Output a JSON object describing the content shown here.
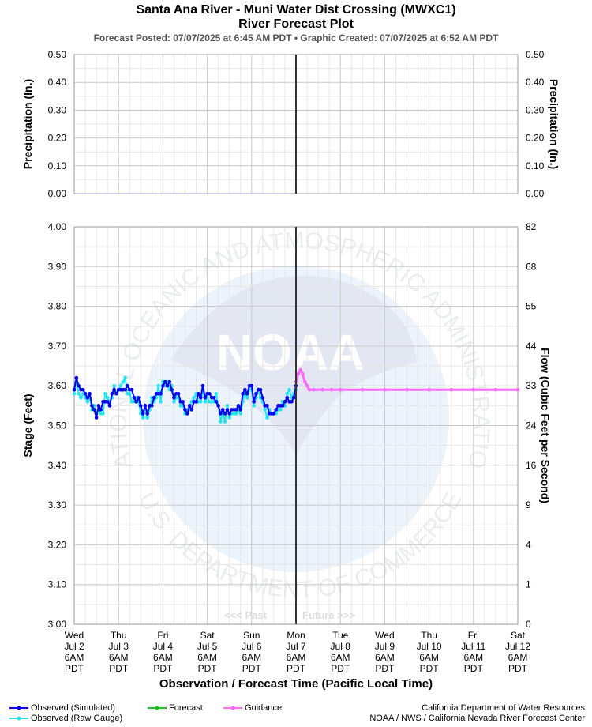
{
  "title_line1": "Santa Ana River - Muni Water Dist Crossing (MWXC1)",
  "title_line2": "River Forecast Plot",
  "subtitle": "Forecast Posted: 07/07/2025 at 6:45 AM PDT  •  Graphic Created: 07/07/2025 at 6:52 AM PDT",
  "watermark": {
    "center_text": "NOAA",
    "ring_top": "NATIONAL OCEANIC AND ATMOSPHERIC ADMINISTRATION",
    "ring_bottom": "U.S. DEPARTMENT OF COMMERCE"
  },
  "past_future": {
    "past": "<<< Past",
    "future": "Future >>>"
  },
  "legend": {
    "observed_simulated": "Observed (Simulated)",
    "observed_raw": "Observed (Raw Gauge)",
    "forecast": "Forecast",
    "guidance": "Guidance"
  },
  "credits": {
    "line1": "California Department of Water Resources",
    "line2": "NOAA / NWS / California Nevada River Forecast Center"
  },
  "colors": {
    "observed_simulated": "#0000ee",
    "observed_raw": "#22e5ee",
    "forecast": "#22bb22",
    "guidance": "#ff66ff",
    "now_line": "#333333",
    "grid": "#cccccc"
  },
  "chart_data": [
    {
      "type": "line",
      "panel": "precipitation",
      "ylabel_left": "Precipitation (In.)",
      "ylabel_right": "Precipitation (In.)",
      "ylim": [
        0,
        0.5
      ],
      "yticks": [
        "0.50",
        "0.40",
        "0.30",
        "0.20",
        "0.10",
        "0.00"
      ],
      "grid": true,
      "series": [
        {
          "values": [
            [
              0,
              0
            ],
            [
              5,
              0
            ]
          ]
        }
      ]
    },
    {
      "type": "line",
      "panel": "stage",
      "xlabel": "Observation / Forecast Time (Pacific Local Time)",
      "ylabel_left": "Stage (Feet)",
      "ylabel_right": "Flow (Cubic Feet per Second)",
      "ylim": [
        3.0,
        4.0
      ],
      "yticks_left": [
        "4.00",
        "3.90",
        "3.80",
        "3.70",
        "3.60",
        "3.50",
        "3.40",
        "3.30",
        "3.20",
        "3.10",
        "3.00"
      ],
      "yticks_right": [
        "82",
        "68",
        "55",
        "44",
        "33",
        "24",
        "16",
        "9",
        "4",
        "1",
        "0"
      ],
      "grid": true,
      "legend_position": "bottom-left",
      "x_ticks": [
        [
          "Wed",
          "Jul 2",
          "6AM",
          "PDT"
        ],
        [
          "Thu",
          "Jul 3",
          "6AM",
          "PDT"
        ],
        [
          "Fri",
          "Jul 4",
          "6AM",
          "PDT"
        ],
        [
          "Sat",
          "Jul 5",
          "6AM",
          "PDT"
        ],
        [
          "Sun",
          "Jul 6",
          "6AM",
          "PDT"
        ],
        [
          "Mon",
          "Jul 7",
          "6AM",
          "PDT"
        ],
        [
          "Tue",
          "Jul 8",
          "6AM",
          "PDT"
        ],
        [
          "Wed",
          "Jul 9",
          "6AM",
          "PDT"
        ],
        [
          "Thu",
          "Jul 10",
          "6AM",
          "PDT"
        ],
        [
          "Fri",
          "Jul 11",
          "6AM",
          "PDT"
        ],
        [
          "Sat",
          "Jul 12",
          "6AM",
          "PDT"
        ]
      ],
      "now_x": 5,
      "series": [
        {
          "name": "Observed (Simulated)",
          "key": "observed_simulated",
          "values": [
            [
              0,
              3.59
            ],
            [
              0.05,
              3.62
            ],
            [
              0.1,
              3.6
            ],
            [
              0.15,
              3.59
            ],
            [
              0.2,
              3.59
            ],
            [
              0.25,
              3.58
            ],
            [
              0.3,
              3.57
            ],
            [
              0.35,
              3.58
            ],
            [
              0.4,
              3.55
            ],
            [
              0.45,
              3.54
            ],
            [
              0.5,
              3.52
            ],
            [
              0.55,
              3.55
            ],
            [
              0.6,
              3.54
            ],
            [
              0.65,
              3.56
            ],
            [
              0.7,
              3.56
            ],
            [
              0.75,
              3.56
            ],
            [
              0.8,
              3.55
            ],
            [
              0.85,
              3.58
            ],
            [
              0.9,
              3.59
            ],
            [
              0.95,
              3.58
            ],
            [
              1.0,
              3.59
            ],
            [
              1.05,
              3.59
            ],
            [
              1.1,
              3.59
            ],
            [
              1.15,
              3.59
            ],
            [
              1.2,
              3.6
            ],
            [
              1.25,
              3.59
            ],
            [
              1.3,
              3.59
            ],
            [
              1.35,
              3.57
            ],
            [
              1.4,
              3.56
            ],
            [
              1.45,
              3.57
            ],
            [
              1.5,
              3.55
            ],
            [
              1.55,
              3.53
            ],
            [
              1.6,
              3.55
            ],
            [
              1.65,
              3.53
            ],
            [
              1.7,
              3.55
            ],
            [
              1.75,
              3.55
            ],
            [
              1.8,
              3.57
            ],
            [
              1.85,
              3.58
            ],
            [
              1.9,
              3.58
            ],
            [
              1.95,
              3.58
            ],
            [
              2.0,
              3.6
            ],
            [
              2.05,
              3.61
            ],
            [
              2.1,
              3.6
            ],
            [
              2.15,
              3.61
            ],
            [
              2.2,
              3.59
            ],
            [
              2.25,
              3.57
            ],
            [
              2.3,
              3.58
            ],
            [
              2.35,
              3.58
            ],
            [
              2.4,
              3.56
            ],
            [
              2.45,
              3.56
            ],
            [
              2.5,
              3.54
            ],
            [
              2.55,
              3.53
            ],
            [
              2.6,
              3.55
            ],
            [
              2.65,
              3.54
            ],
            [
              2.7,
              3.56
            ],
            [
              2.75,
              3.56
            ],
            [
              2.8,
              3.58
            ],
            [
              2.85,
              3.57
            ],
            [
              2.9,
              3.6
            ],
            [
              2.95,
              3.57
            ],
            [
              3.0,
              3.58
            ],
            [
              3.05,
              3.58
            ],
            [
              3.1,
              3.57
            ],
            [
              3.15,
              3.57
            ],
            [
              3.2,
              3.56
            ],
            [
              3.25,
              3.55
            ],
            [
              3.3,
              3.53
            ],
            [
              3.35,
              3.54
            ],
            [
              3.4,
              3.53
            ],
            [
              3.45,
              3.54
            ],
            [
              3.5,
              3.53
            ],
            [
              3.55,
              3.54
            ],
            [
              3.6,
              3.54
            ],
            [
              3.65,
              3.54
            ],
            [
              3.7,
              3.55
            ],
            [
              3.75,
              3.54
            ],
            [
              3.8,
              3.58
            ],
            [
              3.85,
              3.59
            ],
            [
              3.9,
              3.58
            ],
            [
              3.95,
              3.6
            ],
            [
              4.0,
              3.6
            ],
            [
              4.05,
              3.56
            ],
            [
              4.1,
              3.58
            ],
            [
              4.15,
              3.59
            ],
            [
              4.2,
              3.59
            ],
            [
              4.25,
              3.57
            ],
            [
              4.3,
              3.55
            ],
            [
              4.35,
              3.55
            ],
            [
              4.4,
              3.53
            ],
            [
              4.45,
              3.53
            ],
            [
              4.5,
              3.53
            ],
            [
              4.55,
              3.54
            ],
            [
              4.6,
              3.55
            ],
            [
              4.65,
              3.55
            ],
            [
              4.7,
              3.55
            ],
            [
              4.75,
              3.56
            ],
            [
              4.8,
              3.57
            ],
            [
              4.85,
              3.56
            ],
            [
              4.9,
              3.56
            ],
            [
              4.95,
              3.57
            ],
            [
              5.0,
              3.6
            ]
          ]
        },
        {
          "name": "Observed (Raw Gauge)",
          "key": "observed_raw",
          "values": [
            [
              0,
              3.58
            ],
            [
              0.05,
              3.61
            ],
            [
              0.1,
              3.58
            ],
            [
              0.15,
              3.57
            ],
            [
              0.2,
              3.58
            ],
            [
              0.25,
              3.57
            ],
            [
              0.3,
              3.56
            ],
            [
              0.35,
              3.57
            ],
            [
              0.4,
              3.54
            ],
            [
              0.45,
              3.55
            ],
            [
              0.5,
              3.53
            ],
            [
              0.55,
              3.54
            ],
            [
              0.6,
              3.53
            ],
            [
              0.65,
              3.53
            ],
            [
              0.7,
              3.58
            ],
            [
              0.75,
              3.57
            ],
            [
              0.8,
              3.56
            ],
            [
              0.85,
              3.57
            ],
            [
              0.9,
              3.6
            ],
            [
              0.95,
              3.58
            ],
            [
              1.0,
              3.59
            ],
            [
              1.05,
              3.6
            ],
            [
              1.1,
              3.61
            ],
            [
              1.15,
              3.62
            ],
            [
              1.2,
              3.58
            ],
            [
              1.25,
              3.58
            ],
            [
              1.3,
              3.56
            ],
            [
              1.35,
              3.56
            ],
            [
              1.4,
              3.57
            ],
            [
              1.45,
              3.56
            ],
            [
              1.5,
              3.53
            ],
            [
              1.55,
              3.52
            ],
            [
              1.6,
              3.54
            ],
            [
              1.65,
              3.52
            ],
            [
              1.7,
              3.54
            ],
            [
              1.75,
              3.57
            ],
            [
              1.8,
              3.56
            ],
            [
              1.85,
              3.57
            ],
            [
              1.9,
              3.6
            ],
            [
              1.95,
              3.56
            ],
            [
              2.0,
              3.61
            ],
            [
              2.05,
              3.6
            ],
            [
              2.1,
              3.61
            ],
            [
              2.15,
              3.59
            ],
            [
              2.2,
              3.6
            ],
            [
              2.25,
              3.56
            ],
            [
              2.3,
              3.57
            ],
            [
              2.35,
              3.57
            ],
            [
              2.4,
              3.55
            ],
            [
              2.45,
              3.55
            ],
            [
              2.5,
              3.53
            ],
            [
              2.55,
              3.54
            ],
            [
              2.6,
              3.54
            ],
            [
              2.65,
              3.56
            ],
            [
              2.7,
              3.57
            ],
            [
              2.75,
              3.58
            ],
            [
              2.8,
              3.56
            ],
            [
              2.85,
              3.56
            ],
            [
              2.9,
              3.59
            ],
            [
              2.95,
              3.56
            ],
            [
              3.0,
              3.57
            ],
            [
              3.05,
              3.56
            ],
            [
              3.1,
              3.56
            ],
            [
              3.15,
              3.56
            ],
            [
              3.2,
              3.58
            ],
            [
              3.25,
              3.55
            ],
            [
              3.3,
              3.51
            ],
            [
              3.35,
              3.53
            ],
            [
              3.4,
              3.51
            ],
            [
              3.45,
              3.55
            ],
            [
              3.5,
              3.52
            ],
            [
              3.55,
              3.53
            ],
            [
              3.6,
              3.53
            ],
            [
              3.65,
              3.53
            ],
            [
              3.7,
              3.54
            ],
            [
              3.75,
              3.53
            ],
            [
              3.8,
              3.56
            ],
            [
              3.85,
              3.58
            ],
            [
              3.9,
              3.57
            ],
            [
              3.95,
              3.59
            ],
            [
              4.0,
              3.59
            ],
            [
              4.05,
              3.55
            ],
            [
              4.1,
              3.57
            ],
            [
              4.15,
              3.59
            ],
            [
              4.2,
              3.57
            ],
            [
              4.25,
              3.56
            ],
            [
              4.3,
              3.54
            ],
            [
              4.35,
              3.52
            ],
            [
              4.4,
              3.54
            ],
            [
              4.45,
              3.53
            ],
            [
              4.5,
              3.53
            ],
            [
              4.55,
              3.53
            ],
            [
              4.6,
              3.54
            ],
            [
              4.65,
              3.54
            ],
            [
              4.7,
              3.56
            ],
            [
              4.75,
              3.55
            ],
            [
              4.8,
              3.58
            ],
            [
              4.85,
              3.59
            ],
            [
              4.9,
              3.57
            ],
            [
              4.95,
              3.58
            ],
            [
              5.0,
              3.59
            ]
          ]
        },
        {
          "name": "Guidance",
          "key": "guidance",
          "values": [
            [
              5.0,
              3.61
            ],
            [
              5.05,
              3.63
            ],
            [
              5.1,
              3.64
            ],
            [
              5.15,
              3.63
            ],
            [
              5.2,
              3.61
            ],
            [
              5.25,
              3.6
            ],
            [
              5.3,
              3.59
            ],
            [
              5.4,
              3.59
            ],
            [
              5.6,
              3.59
            ],
            [
              5.8,
              3.59
            ],
            [
              6.0,
              3.59
            ],
            [
              6.5,
              3.59
            ],
            [
              7.0,
              3.59
            ],
            [
              7.5,
              3.59
            ],
            [
              8.0,
              3.59
            ],
            [
              8.5,
              3.59
            ],
            [
              9.0,
              3.59
            ],
            [
              9.5,
              3.59
            ],
            [
              10.0,
              3.59
            ]
          ]
        }
      ]
    }
  ]
}
